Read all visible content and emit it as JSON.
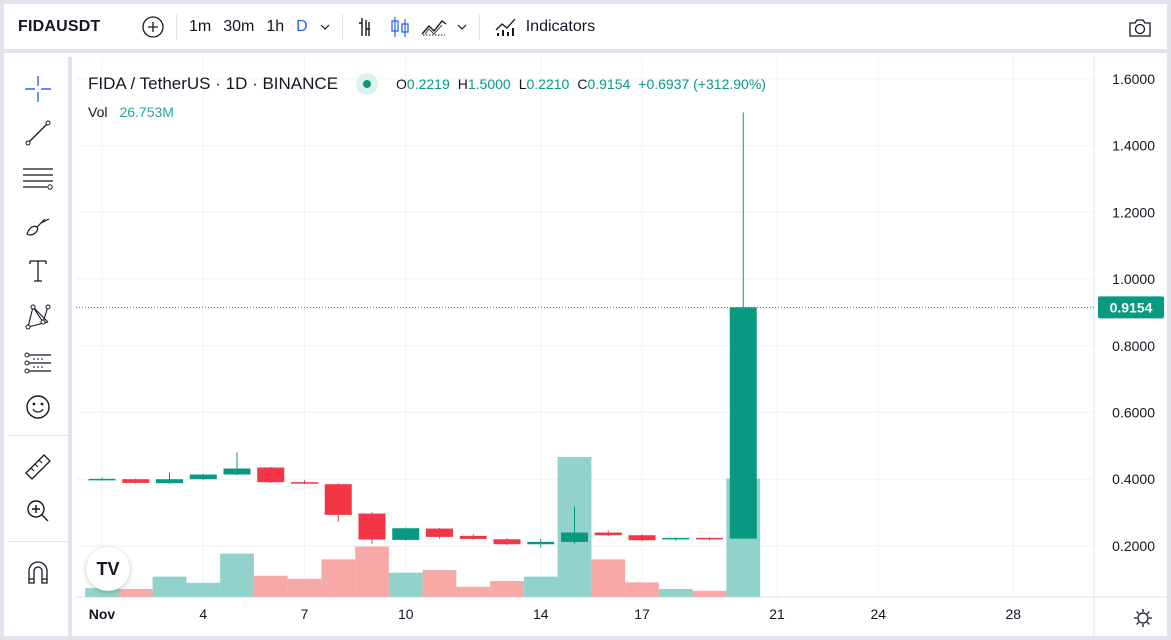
{
  "toolbar": {
    "symbol": "FIDAUSDT",
    "add_icon": "plus-circle-icon",
    "intervals": [
      "1m",
      "30m",
      "1h",
      "D"
    ],
    "active_interval": "D",
    "chart_type_icons": [
      "bar-chart-icon",
      "candles-icon",
      "area-chart-icon"
    ],
    "indicators_label": "Indicators",
    "camera_icon": "camera-icon"
  },
  "left_tools": [
    "crosshair-icon",
    "trend-line-icon",
    "fib-retracement-icon",
    "brush-icon",
    "text-icon",
    "pattern-icon",
    "prediction-icon",
    "emoji-icon",
    "ruler-icon",
    "zoom-in-icon",
    "magnet-icon"
  ],
  "legend": {
    "title": "FIDA / TetherUS · 1D · BINANCE",
    "o_key": "O",
    "o_val": "0.2219",
    "h_key": "H",
    "h_val": "1.5000",
    "l_key": "L",
    "l_val": "0.2210",
    "c_key": "C",
    "c_val": "0.9154",
    "change": "+0.6937 (+312.90%)",
    "vol_label": "Vol",
    "vol_value": "26.753M"
  },
  "colors": {
    "up": "#089981",
    "down": "#f23645",
    "vol_up": "#92d2cc",
    "vol_down": "#f7a9a7",
    "price_tag": "#089981"
  },
  "price_tag": "0.9154",
  "logo_text": "TV",
  "chart_data": {
    "type": "candlestick",
    "title": "FIDA / TetherUS · 1D · BINANCE",
    "y_ticks": [
      "1.6000",
      "1.4000",
      "1.2000",
      "1.0000",
      "0.8000",
      "0.6000",
      "0.4000",
      "0.2000"
    ],
    "x_ticks": [
      {
        "label": "Nov",
        "day": 1
      },
      {
        "label": "4",
        "day": 4
      },
      {
        "label": "7",
        "day": 7
      },
      {
        "label": "10",
        "day": 10
      },
      {
        "label": "14",
        "day": 14
      },
      {
        "label": "17",
        "day": 17
      },
      {
        "label": "21",
        "day": 21
      },
      {
        "label": "24",
        "day": 24
      },
      {
        "label": "28",
        "day": 28
      }
    ],
    "ylim": [
      0.12,
      1.64
    ],
    "last_price": 0.9154,
    "candles": [
      {
        "day": 1,
        "o": 0.4,
        "h": 0.405,
        "l": 0.398,
        "c": 0.401,
        "v": 2.0
      },
      {
        "day": 2,
        "o": 0.4,
        "h": 0.402,
        "l": 0.387,
        "c": 0.389,
        "v": 1.8
      },
      {
        "day": 3,
        "o": 0.388,
        "h": 0.421,
        "l": 0.386,
        "c": 0.4,
        "v": 4.6
      },
      {
        "day": 4,
        "o": 0.4,
        "h": 0.416,
        "l": 0.398,
        "c": 0.414,
        "v": 3.2
      },
      {
        "day": 5,
        "o": 0.414,
        "h": 0.48,
        "l": 0.412,
        "c": 0.432,
        "v": 9.8
      },
      {
        "day": 6,
        "o": 0.435,
        "h": 0.437,
        "l": 0.389,
        "c": 0.391,
        "v": 4.8
      },
      {
        "day": 7,
        "o": 0.391,
        "h": 0.397,
        "l": 0.386,
        "c": 0.388,
        "v": 4.1
      },
      {
        "day": 8,
        "o": 0.385,
        "h": 0.387,
        "l": 0.272,
        "c": 0.293,
        "v": 8.5
      },
      {
        "day": 9,
        "o": 0.297,
        "h": 0.301,
        "l": 0.207,
        "c": 0.219,
        "v": 11.4
      },
      {
        "day": 10,
        "o": 0.218,
        "h": 0.255,
        "l": 0.216,
        "c": 0.253,
        "v": 5.5
      },
      {
        "day": 11,
        "o": 0.252,
        "h": 0.254,
        "l": 0.222,
        "c": 0.227,
        "v": 6.1
      },
      {
        "day": 12,
        "o": 0.23,
        "h": 0.235,
        "l": 0.219,
        "c": 0.221,
        "v": 2.3
      },
      {
        "day": 13,
        "o": 0.22,
        "h": 0.223,
        "l": 0.203,
        "c": 0.205,
        "v": 3.6
      },
      {
        "day": 14,
        "o": 0.205,
        "h": 0.221,
        "l": 0.195,
        "c": 0.212,
        "v": 4.6
      },
      {
        "day": 15,
        "o": 0.212,
        "h": 0.318,
        "l": 0.207,
        "c": 0.24,
        "v": 31.6
      },
      {
        "day": 16,
        "o": 0.24,
        "h": 0.246,
        "l": 0.229,
        "c": 0.232,
        "v": 8.5
      },
      {
        "day": 17,
        "o": 0.232,
        "h": 0.235,
        "l": 0.214,
        "c": 0.217,
        "v": 3.3
      },
      {
        "day": 18,
        "o": 0.22,
        "h": 0.225,
        "l": 0.216,
        "c": 0.224,
        "v": 1.8
      },
      {
        "day": 19,
        "o": 0.224,
        "h": 0.226,
        "l": 0.217,
        "c": 0.222,
        "v": 1.4
      },
      {
        "day": 20,
        "o": 0.2219,
        "h": 1.5,
        "l": 0.221,
        "c": 0.9154,
        "v": 26.753
      }
    ]
  }
}
